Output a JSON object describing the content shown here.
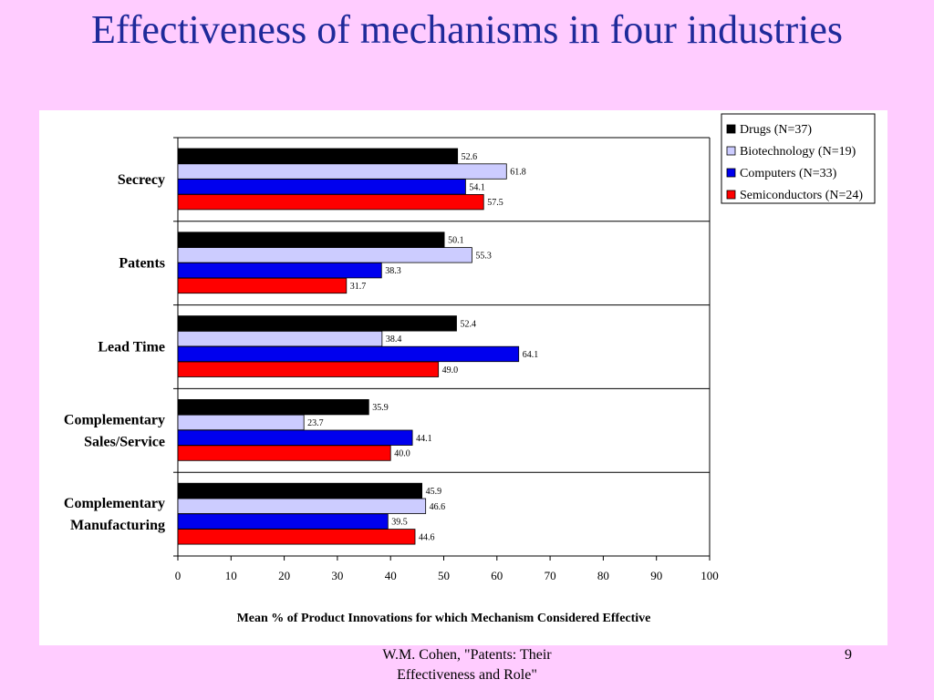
{
  "slide": {
    "title": "Effectiveness of mechanisms in four industries",
    "footer": "W.M. Cohen, \"Patents: Their Effectiveness and Role\"",
    "page_number": "9"
  },
  "colors": {
    "background": "#ffccff",
    "title": "#1f2a9a",
    "series": [
      "#000000",
      "#ccccff",
      "#0000ee",
      "#ff0000"
    ]
  },
  "chart_data": {
    "type": "bar",
    "orientation": "horizontal",
    "categories": [
      [
        "Secrecy"
      ],
      [
        "Patents"
      ],
      [
        "Lead Time"
      ],
      [
        "Complementary",
        "Sales/Service"
      ],
      [
        "Complementary",
        "Manufacturing"
      ]
    ],
    "series": [
      {
        "name": "Drugs (N=37)",
        "values": [
          52.6,
          50.1,
          52.4,
          35.9,
          45.9
        ]
      },
      {
        "name": "Biotechnology (N=19)",
        "values": [
          61.8,
          55.3,
          38.4,
          23.7,
          46.6
        ]
      },
      {
        "name": "Computers (N=33)",
        "values": [
          54.1,
          38.3,
          64.1,
          44.1,
          39.5
        ]
      },
      {
        "name": "Semiconductors (N=24)",
        "values": [
          57.5,
          31.7,
          49.0,
          40.0,
          44.6
        ]
      }
    ],
    "xlabel": "Mean % of Product Innovations for which Mechanism Considered Effective",
    "xlim": [
      0,
      100
    ],
    "xticks": [
      0,
      10,
      20,
      30,
      40,
      50,
      60,
      70,
      80,
      90,
      100
    ],
    "legend_position": "top-right",
    "grid": false
  }
}
